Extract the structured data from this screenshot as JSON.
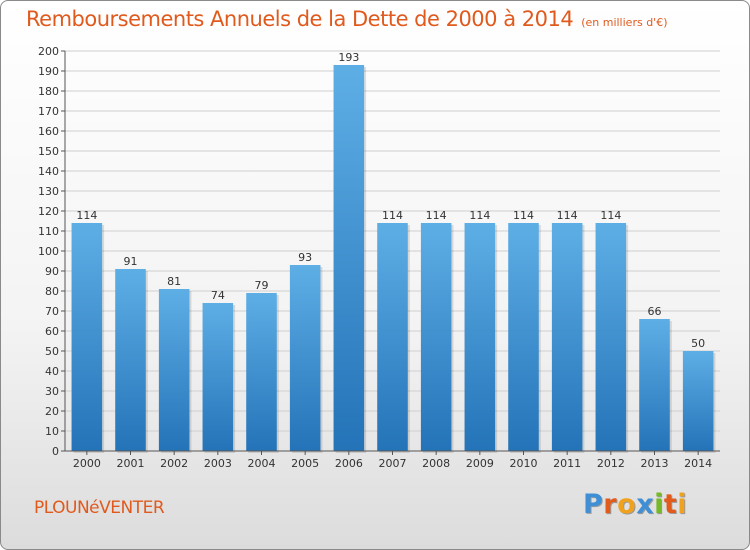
{
  "title": "Remboursements Annuels de la Dette de 2000 à 2014",
  "subtitle": "(en milliers d'€)",
  "commune": "PLOUNéVENTER",
  "brand": {
    "text": "Proxiti",
    "letters": [
      {
        "char": "P",
        "color": "#3f8fd6"
      },
      {
        "char": "r",
        "color": "#e35b1b"
      },
      {
        "char": "o",
        "color": "#f0a21e"
      },
      {
        "char": "x",
        "color": "#3f8fd6"
      },
      {
        "char": "i",
        "color": "#77b829"
      },
      {
        "char": "t",
        "color": "#e35b1b"
      },
      {
        "char": "i",
        "color": "#f0a21e"
      }
    ]
  },
  "colors": {
    "accent": "#e05a1e",
    "bar_light": "#5eaee6",
    "bar_dark": "#2473b8",
    "grid": "#cfcfcf"
  },
  "chart_data": {
    "type": "bar",
    "categories": [
      "2000",
      "2001",
      "2002",
      "2003",
      "2004",
      "2005",
      "2006",
      "2007",
      "2008",
      "2009",
      "2010",
      "2011",
      "2012",
      "2013",
      "2014"
    ],
    "values": [
      114,
      91,
      81,
      74,
      79,
      93,
      193,
      114,
      114,
      114,
      114,
      114,
      114,
      66,
      50
    ],
    "title": "Remboursements Annuels de la Dette de 2000 à 2014",
    "ylabel": "",
    "xlabel": "",
    "ylim": [
      0,
      200
    ],
    "ytick_step": 10,
    "grid": true,
    "data_labels": true
  }
}
